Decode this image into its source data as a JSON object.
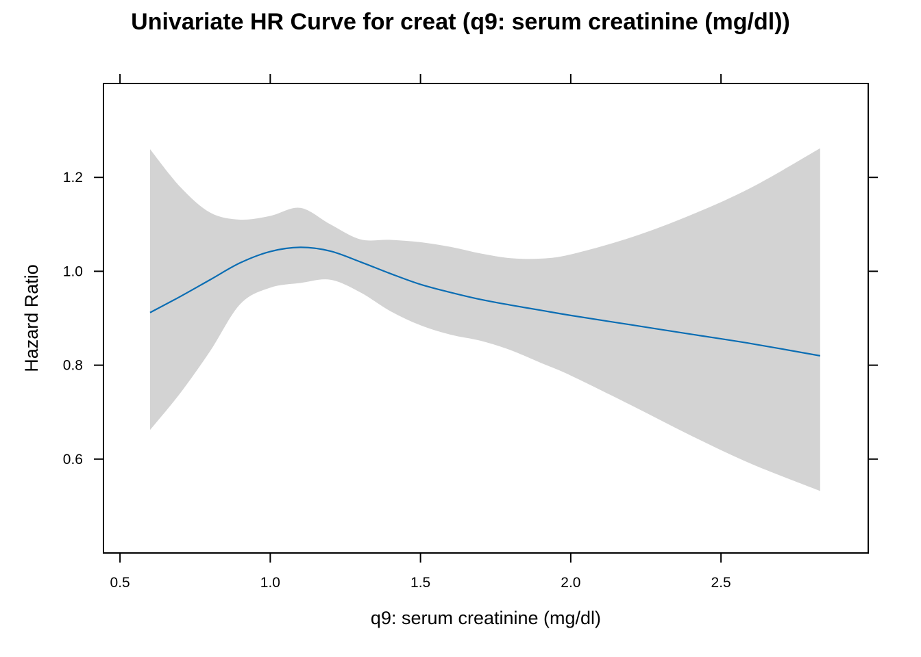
{
  "chart_data": {
    "type": "line",
    "title": "Univariate HR Curve for creat (q9: serum creatinine (mg/dl))",
    "xlabel": "q9: serum creatinine (mg/dl)",
    "ylabel": "Hazard Ratio",
    "xlim": [
      0.445,
      2.99
    ],
    "ylim": [
      0.4,
      1.4
    ],
    "xticks": [
      "0.5",
      "1.0",
      "1.5",
      "2.0",
      "2.5"
    ],
    "yticks": [
      "0.6",
      "0.8",
      "1.0",
      "1.2"
    ],
    "grid": false,
    "legend": "none",
    "colors": {
      "line": "#0a6db3",
      "band": "#d3d3d3",
      "frame": "#000000"
    },
    "series": [
      {
        "x": [
          0.6,
          0.7,
          0.8,
          0.9,
          1.0,
          1.1,
          1.2,
          1.3,
          1.4,
          1.5,
          1.6,
          1.7,
          1.8,
          1.9,
          2.0,
          2.2,
          2.4,
          2.6,
          2.83
        ],
        "y": [
          0.912,
          0.946,
          0.982,
          1.018,
          1.042,
          1.051,
          1.043,
          1.02,
          0.995,
          0.972,
          0.955,
          0.94,
          0.928,
          0.917,
          0.906,
          0.886,
          0.866,
          0.846,
          0.82
        ],
        "lower": [
          0.662,
          0.74,
          0.83,
          0.93,
          0.965,
          0.975,
          0.982,
          0.955,
          0.915,
          0.885,
          0.865,
          0.852,
          0.832,
          0.805,
          0.778,
          0.715,
          0.65,
          0.59,
          0.532
        ],
        "upper": [
          1.26,
          1.18,
          1.125,
          1.11,
          1.118,
          1.135,
          1.1,
          1.068,
          1.067,
          1.062,
          1.052,
          1.038,
          1.028,
          1.027,
          1.036,
          1.072,
          1.12,
          1.178,
          1.262
        ]
      }
    ]
  }
}
